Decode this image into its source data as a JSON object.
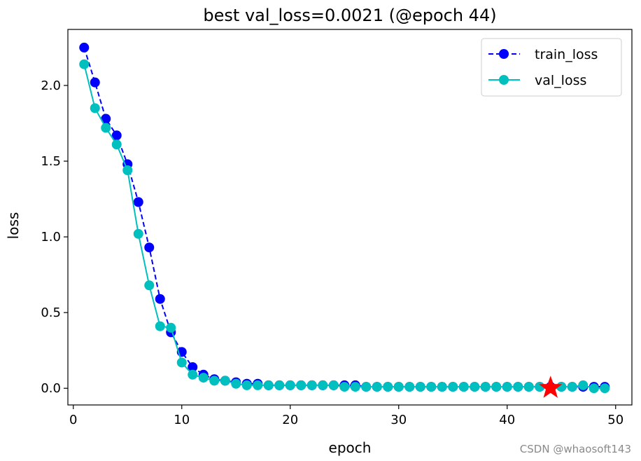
{
  "chart_data": {
    "type": "line",
    "title": "best val_loss=0.0021 (@epoch 44)",
    "xlabel": "epoch",
    "ylabel": "loss",
    "xlim": [
      -0.5,
      51.5
    ],
    "ylim": [
      -0.11,
      2.37
    ],
    "xticks": [
      0,
      10,
      20,
      30,
      40,
      50
    ],
    "xtick_labels": [
      "0",
      "10",
      "20",
      "30",
      "40",
      "50"
    ],
    "yticks": [
      0.0,
      0.5,
      1.0,
      1.5,
      2.0
    ],
    "ytick_labels": [
      "0.0",
      "0.5",
      "1.0",
      "1.5",
      "2.0"
    ],
    "grid": false,
    "legend_position": "top-right",
    "x": [
      1,
      2,
      3,
      4,
      5,
      6,
      7,
      8,
      9,
      10,
      11,
      12,
      13,
      14,
      15,
      16,
      17,
      18,
      19,
      20,
      21,
      22,
      23,
      24,
      25,
      26,
      27,
      28,
      29,
      30,
      31,
      32,
      33,
      34,
      35,
      36,
      37,
      38,
      39,
      40,
      41,
      42,
      43,
      44,
      45,
      46,
      47,
      48,
      49
    ],
    "series": [
      {
        "name": "train_loss",
        "color": "#0000ff",
        "line_style": "dashed",
        "marker": "circle",
        "values": [
          2.25,
          2.02,
          1.78,
          1.67,
          1.48,
          1.23,
          0.93,
          0.59,
          0.37,
          0.24,
          0.14,
          0.09,
          0.06,
          0.05,
          0.04,
          0.03,
          0.03,
          0.02,
          0.02,
          0.02,
          0.02,
          0.02,
          0.02,
          0.02,
          0.02,
          0.02,
          0.01,
          0.01,
          0.01,
          0.01,
          0.01,
          0.01,
          0.01,
          0.01,
          0.01,
          0.01,
          0.01,
          0.01,
          0.01,
          0.01,
          0.01,
          0.01,
          0.01,
          0.01,
          0.01,
          0.01,
          0.01,
          0.01,
          0.01
        ]
      },
      {
        "name": "val_loss",
        "color": "#00bfbf",
        "line_style": "solid",
        "marker": "circle",
        "values": [
          2.14,
          1.85,
          1.72,
          1.61,
          1.44,
          1.02,
          0.68,
          0.41,
          0.4,
          0.17,
          0.09,
          0.07,
          0.05,
          0.05,
          0.03,
          0.02,
          0.02,
          0.02,
          0.02,
          0.02,
          0.02,
          0.02,
          0.02,
          0.02,
          0.01,
          0.01,
          0.01,
          0.01,
          0.01,
          0.01,
          0.01,
          0.01,
          0.01,
          0.01,
          0.01,
          0.01,
          0.01,
          0.01,
          0.01,
          0.01,
          0.01,
          0.01,
          0.01,
          0.0021,
          0.01,
          0.01,
          0.02,
          0.0,
          0.0
        ]
      }
    ],
    "best_marker": {
      "epoch": 44,
      "value": 0.0021,
      "color": "#ff0000",
      "shape": "star"
    }
  },
  "watermark": "CSDN @whaosoft143"
}
